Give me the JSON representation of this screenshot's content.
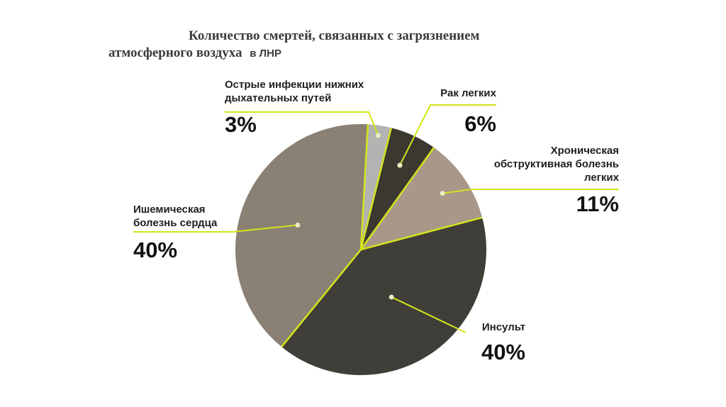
{
  "chart_data": {
    "type": "pie",
    "title": "Количество смертей, связанных с загрязнением",
    "title_line2": "атмосферного воздуха",
    "title_suffix": "в ЛНР",
    "start_category": "Острые инфекции нижних дыхательных путей",
    "direction": "clockwise",
    "slices": [
      {
        "label_lines": [
          "Острые инфекции нижних",
          "дыхательных путей"
        ],
        "value_text": "3%",
        "value": 3,
        "color": "#b3b3b1"
      },
      {
        "label_lines": [
          "Рак легких"
        ],
        "value_text": "6%",
        "value": 6,
        "color": "#3b3830"
      },
      {
        "label_lines": [
          "Хроническая",
          "обструктивная болезнь",
          "легких"
        ],
        "value_text": "11%",
        "value": 11,
        "color": "#a9978a"
      },
      {
        "label_lines": [
          "Инсульт"
        ],
        "value_text": "40%",
        "value": 40,
        "color": "#3f3e38"
      },
      {
        "label_lines": [
          "Ишемическая",
          "болезнь сердца"
        ],
        "value_text": "40%",
        "value": 40,
        "color": "#8a8174"
      }
    ],
    "separator_color": "#d4e41c",
    "leader_color": "#d4e41c"
  }
}
